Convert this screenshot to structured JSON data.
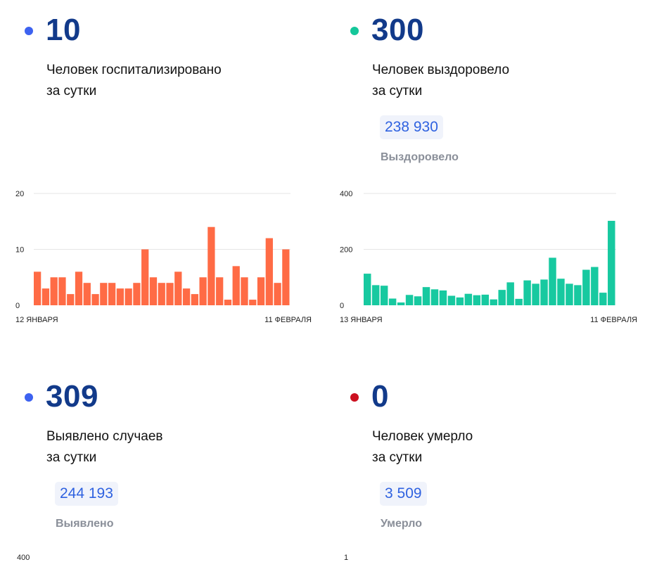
{
  "cards": [
    {
      "value": "10",
      "caption_line1": "Человек госпитализировано",
      "caption_line2": "за сутки",
      "color": "#3d62f0",
      "chart_data": {
        "type": "bar",
        "color": "#ff6b45",
        "ylim": [
          0,
          20
        ],
        "yticks": [
          "0",
          "10",
          "20"
        ],
        "x_start_label": "12 ЯНВАРЯ",
        "x_end_label": "11 ФЕВРАЛЯ",
        "values": [
          6,
          3,
          5,
          5,
          2,
          6,
          4,
          2,
          4,
          4,
          3,
          3,
          4,
          10,
          5,
          4,
          4,
          6,
          3,
          2,
          5,
          14,
          5,
          1,
          7,
          5,
          1,
          5,
          12,
          4,
          10
        ]
      }
    },
    {
      "value": "300",
      "caption_line1": "Человек выздоровело",
      "caption_line2": "за сутки",
      "color": "#14c79a",
      "total": "238 930",
      "total_label": "Выздоровело",
      "chart_data": {
        "type": "bar",
        "color": "#17c9a0",
        "ylim": [
          0,
          400
        ],
        "yticks": [
          "0",
          "200",
          "400"
        ],
        "x_start_label": "13 ЯНВАРЯ",
        "x_end_label": "11 ФЕВРАЛЯ",
        "values": [
          113,
          72,
          70,
          24,
          10,
          37,
          32,
          65,
          57,
          53,
          34,
          28,
          41,
          36,
          38,
          21,
          55,
          82,
          23,
          89,
          77,
          92,
          170,
          95,
          77,
          72,
          127,
          137,
          45,
          302
        ]
      }
    },
    {
      "value": "309",
      "caption_line1": "Выявлено случаев",
      "caption_line2": "за сутки",
      "color": "#3d62f0",
      "total": "244 193",
      "total_label": "Выявлено",
      "partial_tick": "400"
    },
    {
      "value": "0",
      "caption_line1": "Человек умерло",
      "caption_line2": "за сутки",
      "color": "#cc1020",
      "total": "3 509",
      "total_label": "Умерло",
      "partial_tick": "1"
    }
  ]
}
